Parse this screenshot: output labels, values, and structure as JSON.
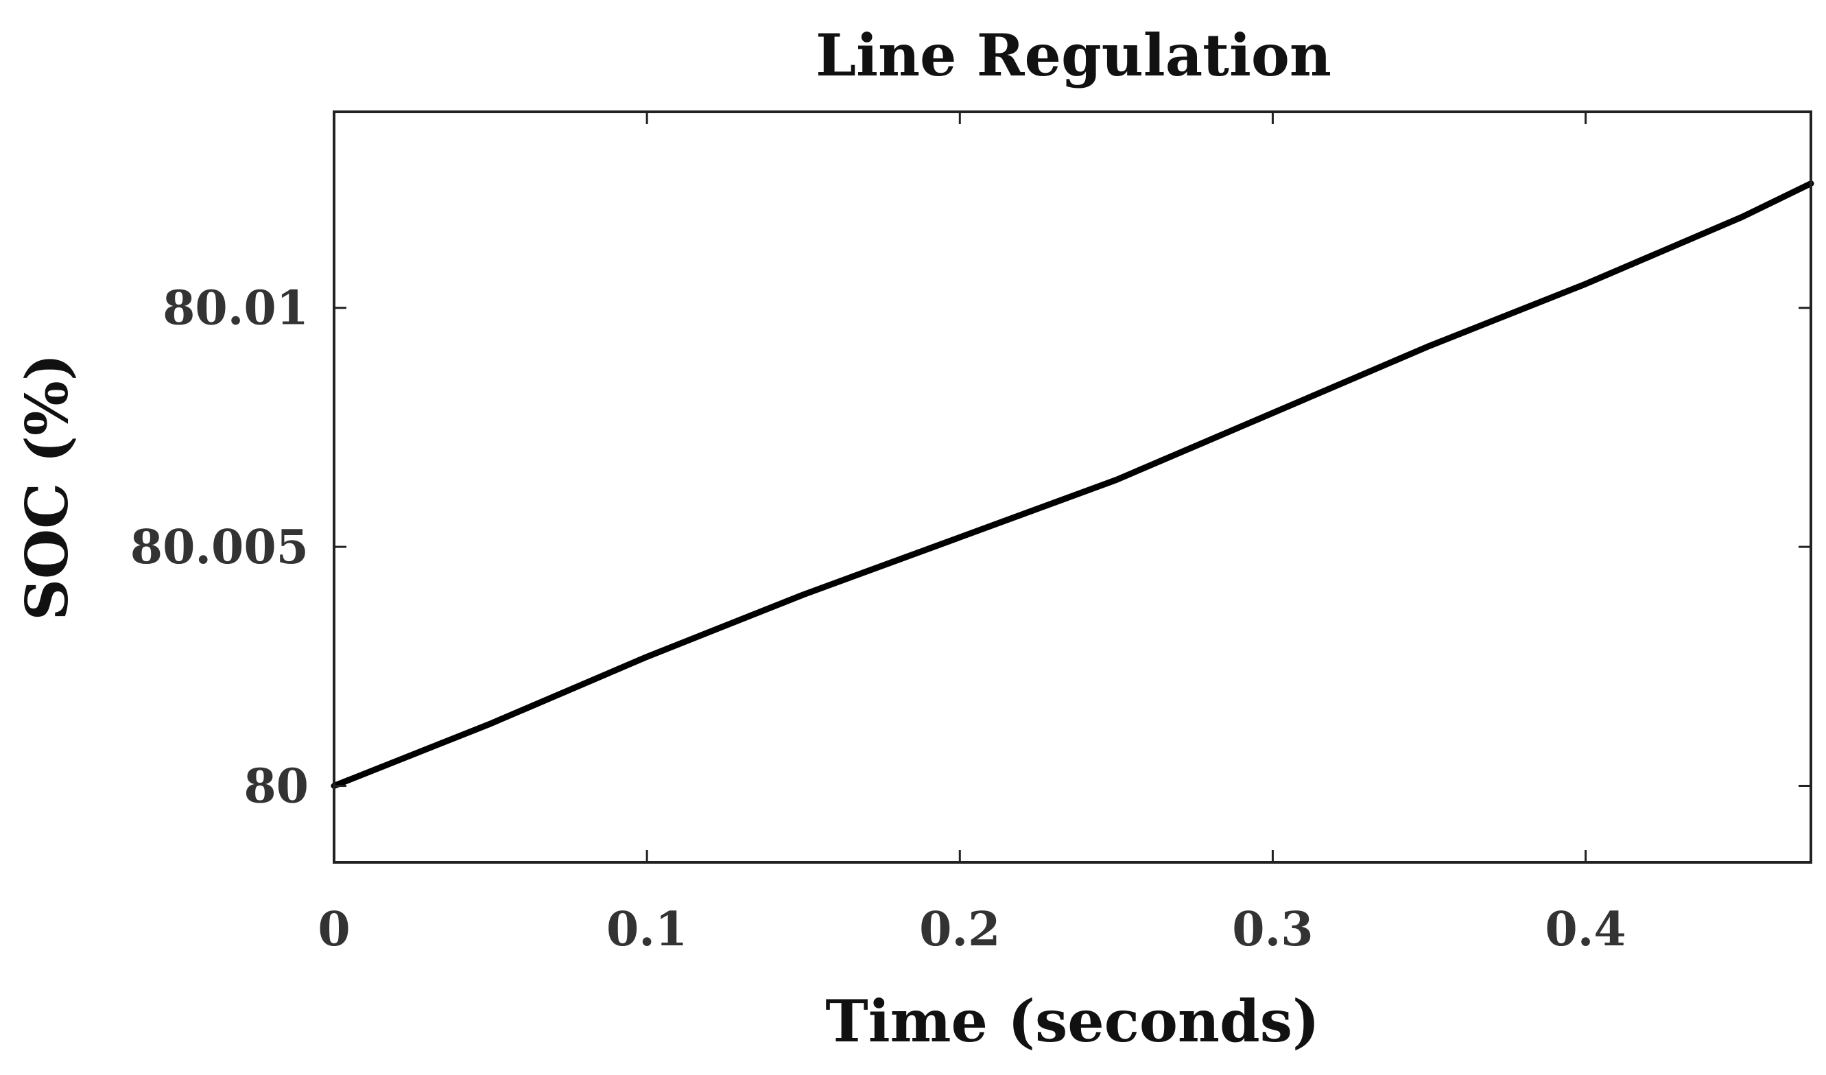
{
  "chart_data": {
    "type": "line",
    "title": "Line Regulation",
    "xlabel": "Time (seconds)",
    "ylabel": "SOC (%)",
    "xlim": [
      0,
      0.472
    ],
    "ylim": [
      79.9984,
      80.0141
    ],
    "x_ticks": [
      0,
      0.1,
      0.2,
      0.3,
      0.4
    ],
    "x_tick_labels": [
      "0",
      "0.1",
      "0.2",
      "0.3",
      "0.4"
    ],
    "y_ticks": [
      80,
      80.005,
      80.01
    ],
    "y_tick_labels": [
      "80",
      "80.005",
      "80.01"
    ],
    "grid": false,
    "legend": "none",
    "series": [
      {
        "color": "#000000",
        "x": [
          0,
          0.05,
          0.1,
          0.15,
          0.2,
          0.25,
          0.3,
          0.35,
          0.4,
          0.45,
          0.472
        ],
        "y": [
          80.0,
          80.0013,
          80.0027,
          80.004,
          80.0052,
          80.0064,
          80.0078,
          80.0092,
          80.0105,
          80.0119,
          80.0126
        ]
      }
    ]
  }
}
